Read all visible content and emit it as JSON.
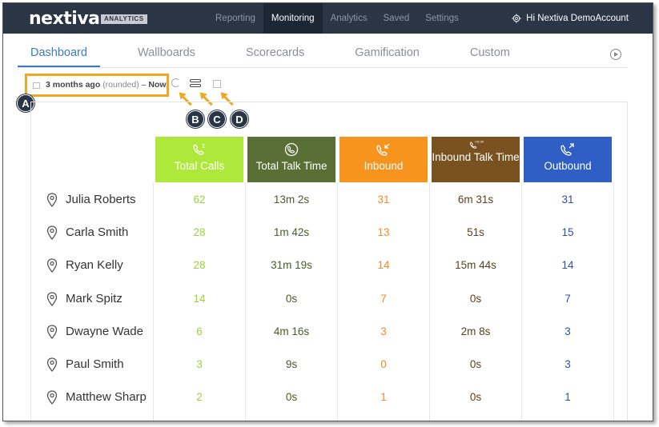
{
  "app": {
    "logo_text": "nextiva",
    "logo_badge": "ANALYTICS",
    "top_nav": [
      "Reporting",
      "Monitoring",
      "Analytics",
      "Saved",
      "Settings"
    ],
    "active_top_nav": "Monitoring",
    "account_label": "Hi Nextiva DemoAccount"
  },
  "subtabs": [
    "Dashboard",
    "Wallboards",
    "Scorecards",
    "Gamification",
    "Custom"
  ],
  "active_subtab": "Dashboard",
  "date_range": {
    "start": "3 months ago",
    "rounded": "(rounded)",
    "separator": "–",
    "end": "Now"
  },
  "callouts": [
    "A",
    "B",
    "C",
    "D"
  ],
  "columns": [
    {
      "label": "Total Calls",
      "color": "#aee83a",
      "text_color": "#9bd23a",
      "icon": "phone-sum-icon"
    },
    {
      "label": "Total Talk Time",
      "color": "#5a6f35",
      "text_color": "#4a5a2a",
      "icon": "phone-clock-icon"
    },
    {
      "label": "Inbound",
      "color": "#f7941d",
      "text_color": "#f08a2a",
      "icon": "phone-inbound-icon"
    },
    {
      "label": "Inbound Talk Time",
      "color": "#7a5220",
      "text_color": "#5c4020",
      "icon": "phone-inbound-timer-icon"
    },
    {
      "label": "Outbound",
      "color": "#2f5fc4",
      "text_color": "#2f4fa8",
      "icon": "phone-outbound-icon"
    }
  ],
  "rows": [
    {
      "name": "Julia Roberts",
      "values": [
        "62",
        "13m 2s",
        "31",
        "6m 31s",
        "31"
      ]
    },
    {
      "name": "Carla Smith",
      "values": [
        "28",
        "1m 42s",
        "13",
        "51s",
        "15"
      ]
    },
    {
      "name": "Ryan Kelly",
      "values": [
        "28",
        "31m 19s",
        "14",
        "15m 44s",
        "14"
      ]
    },
    {
      "name": "Mark Spitz",
      "values": [
        "14",
        "0s",
        "7",
        "0s",
        "7"
      ]
    },
    {
      "name": "Dwayne Wade",
      "values": [
        "6",
        "4m 16s",
        "3",
        "2m 8s",
        "3"
      ]
    },
    {
      "name": "Paul Smith",
      "values": [
        "3",
        "9s",
        "0",
        "0s",
        "3"
      ]
    },
    {
      "name": "Matthew Sharp",
      "values": [
        "2",
        "0s",
        "1",
        "0s",
        "1"
      ]
    }
  ],
  "colors": {
    "topbar": "#2a3545",
    "accent": "#3a7cc0",
    "callout_highlight": "#f0a722"
  }
}
